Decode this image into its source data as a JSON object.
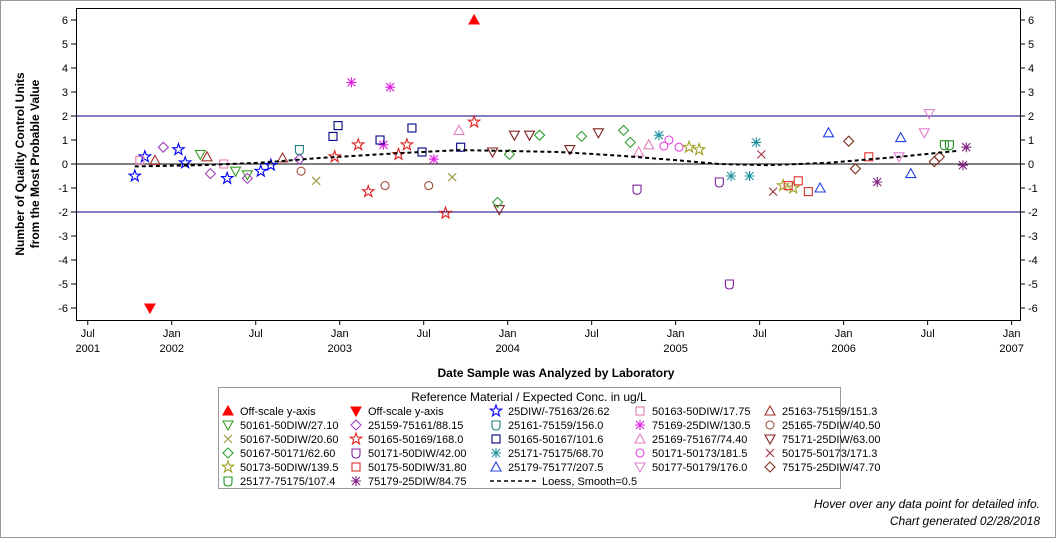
{
  "chart_data": {
    "type": "scatter",
    "xlabel": "Date Sample was Analyzed by Laboratory",
    "ylabel": [
      "Number of Quality Control Units",
      "from the Most Probable Value"
    ],
    "legend_title": "Reference Material / Expected Conc. in ug/L",
    "notes": [
      "Hover over any data point for detailed info.",
      "Chart generated 02/28/2018"
    ],
    "xlim": [
      2001.43,
      2007.05
    ],
    "ylim": [
      -6.5,
      6.5
    ],
    "xticks": [
      {
        "value": 2001.5,
        "label": "Jul 2001"
      },
      {
        "value": 2002,
        "label": "Jan 2002"
      },
      {
        "value": 2002.5,
        "label": "Jul"
      },
      {
        "value": 2003,
        "label": "Jan 2003"
      },
      {
        "value": 2003.5,
        "label": "Jul"
      },
      {
        "value": 2004,
        "label": "Jan 2004"
      },
      {
        "value": 2004.5,
        "label": "Jul"
      },
      {
        "value": 2005,
        "label": "Jan 2005"
      },
      {
        "value": 2005.5,
        "label": "Jul"
      },
      {
        "value": 2006,
        "label": "Jan 2006"
      },
      {
        "value": 2006.5,
        "label": "Jul"
      },
      {
        "value": 2007,
        "label": "Jan 2007"
      }
    ],
    "yticks": [
      -6,
      -5,
      -4,
      -3,
      -2,
      -1,
      0,
      1,
      2,
      3,
      4,
      5,
      6
    ],
    "reference_lines": [
      {
        "value": 2,
        "color": "#000080"
      },
      {
        "value": 0,
        "color": "#000000"
      },
      {
        "value": -2,
        "color": "#000080"
      }
    ],
    "series": [
      {
        "name": "Off-scale y-axis",
        "marker": "triangle-filled",
        "color": "#ff0000",
        "x": [
          2003.8
        ],
        "values": [
          6
        ]
      },
      {
        "name": "Off-scale y-axis",
        "marker": "triangle-down-filled",
        "color": "#ff0000",
        "x": [
          2001.87
        ],
        "values": [
          -6
        ]
      },
      {
        "name": "25DIW/-75163/26.62",
        "marker": "star",
        "color": "#0000ff",
        "x": [
          2001.78,
          2001.84,
          2002.04,
          2002.08,
          2002.33,
          2002.53,
          2002.59
        ],
        "values": [
          -0.5,
          0.3,
          0.6,
          0.05,
          -0.6,
          -0.3,
          -0.05
        ]
      },
      {
        "name": "50163-50DIW/17.75",
        "marker": "square",
        "color": "#e07cb0",
        "x": [
          2001.81,
          2002.31
        ],
        "values": [
          0.15,
          0
        ]
      },
      {
        "name": "25163-75159/151.3",
        "marker": "triangle",
        "color": "#a0302a",
        "x": [
          2001.9,
          2002.21,
          2002.66
        ],
        "values": [
          0.15,
          0.3,
          0.25
        ]
      },
      {
        "name": "50161-50DIW/27.10",
        "marker": "triangle-down",
        "color": "#3a9a2a",
        "x": [
          2002.17,
          2002.38,
          2002.45
        ],
        "values": [
          0.4,
          -0.3,
          -0.45
        ]
      },
      {
        "name": "25159-75161/88.15",
        "marker": "diamond",
        "color": "#a040c0",
        "x": [
          2001.95,
          2002.23,
          2002.45,
          2002.76
        ],
        "values": [
          0.7,
          -0.4,
          -0.6,
          0.2
        ]
      },
      {
        "name": "25161-75159/156.0",
        "marker": "shield",
        "color": "#208080",
        "x": [
          2002.76
        ],
        "values": [
          0.6
        ]
      },
      {
        "name": "75169-25DIW/130.5",
        "marker": "asterisk",
        "color": "#e020e0",
        "x": [
          2003.07,
          2003.3,
          2003.26,
          2003.56
        ],
        "values": [
          3.4,
          3.2,
          0.8,
          0.2
        ]
      },
      {
        "name": "25165-75DIW/40.50",
        "marker": "circle",
        "color": "#a05040",
        "x": [
          2002.77,
          2003.27,
          2003.53
        ],
        "values": [
          -0.3,
          -0.9,
          -0.9
        ]
      },
      {
        "name": "50167-50DIW/20.60",
        "marker": "x",
        "color": "#9a9a40",
        "x": [
          2002.86,
          2003.67
        ],
        "values": [
          -0.7,
          -0.55
        ]
      },
      {
        "name": "50165-50169/168.0",
        "marker": "star",
        "color": "#e02020",
        "x": [
          2002.97,
          2003.11,
          2003.17,
          2003.35,
          2003.4,
          2003.63,
          2003.8
        ],
        "values": [
          0.3,
          0.8,
          -1.15,
          0.4,
          0.8,
          -2.05,
          1.75
        ]
      },
      {
        "name": "50165-50167/101.6",
        "marker": "square",
        "color": "#000080",
        "x": [
          2002.96,
          2002.99,
          2003.24,
          2003.43,
          2003.49,
          2003.72
        ],
        "values": [
          1.15,
          1.6,
          1.0,
          1.5,
          0.5,
          0.7
        ]
      },
      {
        "name": "25169-75167/74.40",
        "marker": "triangle",
        "color": "#e080c0",
        "x": [
          2003.71,
          2004.78,
          2004.84
        ],
        "values": [
          1.4,
          0.5,
          0.8
        ]
      },
      {
        "name": "75171-25DIW/63.00",
        "marker": "triangle-down",
        "color": "#802020",
        "x": [
          2003.91,
          2003.95,
          2004.04,
          2004.13,
          2004.37,
          2004.54
        ],
        "values": [
          0.5,
          -1.9,
          1.2,
          1.2,
          0.6,
          1.3
        ]
      },
      {
        "name": "50167-50171/62.60",
        "marker": "diamond",
        "color": "#30a030",
        "x": [
          2003.94,
          2004.01,
          2004.19,
          2004.44,
          2004.69,
          2004.73
        ],
        "values": [
          -1.6,
          0.4,
          1.2,
          1.15,
          1.4,
          0.9
        ]
      },
      {
        "name": "50171-50DIW/42.00",
        "marker": "shield",
        "color": "#8020a0",
        "x": [
          2004.77,
          2005.26,
          2005.32
        ],
        "values": [
          -1.05,
          -0.75,
          -5.0
        ]
      },
      {
        "name": "25171-75175/68.70",
        "marker": "asterisk",
        "color": "#2090a0",
        "x": [
          2004.9,
          2005.33,
          2005.48,
          2005.44
        ],
        "values": [
          1.2,
          -0.5,
          0.9,
          -0.5
        ]
      },
      {
        "name": "50171-50173/181.5",
        "marker": "circle",
        "color": "#e040e0",
        "x": [
          2004.93,
          2004.96,
          2005.02
        ],
        "values": [
          0.75,
          1.0,
          0.7
        ]
      },
      {
        "name": "50175-50173/171.3",
        "marker": "x",
        "color": "#a03040",
        "x": [
          2005.51,
          2005.58
        ],
        "values": [
          0.4,
          -1.15
        ]
      },
      {
        "name": "50173-50DIW/139.5",
        "marker": "star",
        "color": "#a0a020",
        "x": [
          2005.08,
          2005.14,
          2005.64,
          2005.7
        ],
        "values": [
          0.7,
          0.6,
          -0.9,
          -1.0
        ]
      },
      {
        "name": "50175-50DIW/31.80",
        "marker": "square",
        "color": "#e03030",
        "x": [
          2005.67,
          2005.73,
          2005.79,
          2006.15
        ],
        "values": [
          -0.9,
          -0.7,
          -1.15,
          0.3
        ]
      },
      {
        "name": "25179-75177/207.5",
        "marker": "triangle",
        "color": "#2040e0",
        "x": [
          2005.86,
          2005.91,
          2006.34,
          2006.4
        ],
        "values": [
          -1.0,
          1.3,
          1.1,
          -0.4
        ]
      },
      {
        "name": "50177-50179/176.0",
        "marker": "triangle-down",
        "color": "#e080d0",
        "x": [
          2006.51,
          2006.48,
          2006.33
        ],
        "values": [
          2.1,
          1.3,
          0.3
        ]
      },
      {
        "name": "75175-25DIW/47.70",
        "marker": "diamond",
        "color": "#803020",
        "x": [
          2006.03,
          2006.07,
          2006.54,
          2006.57
        ],
        "values": [
          0.95,
          -0.2,
          0.1,
          0.3
        ]
      },
      {
        "name": "25177-75175/107.4",
        "marker": "shield",
        "color": "#209020",
        "x": [
          2006.63,
          2006.6
        ],
        "values": [
          0.8,
          0.8
        ]
      },
      {
        "name": "75179-25DIW/84.75",
        "marker": "asterisk",
        "color": "#802080",
        "x": [
          2006.2,
          2006.71,
          2006.73
        ],
        "values": [
          -0.75,
          -0.05,
          0.7
        ]
      },
      {
        "name": "Loess, Smooth=0.5",
        "marker": "dashed-line",
        "color": "#000000",
        "x": [
          2001.78,
          2002.17,
          2002.52,
          2002.88,
          2003.35,
          2003.71,
          2003.95,
          2004.31,
          2004.66,
          2005.02,
          2005.26,
          2005.55,
          2005.91,
          2006.33,
          2006.68
        ],
        "values": [
          -0.1,
          -0.05,
          0.05,
          0.25,
          0.45,
          0.58,
          0.55,
          0.5,
          0.35,
          0.15,
          0.0,
          -0.05,
          0.05,
          0.3,
          0.55
        ]
      }
    ]
  }
}
